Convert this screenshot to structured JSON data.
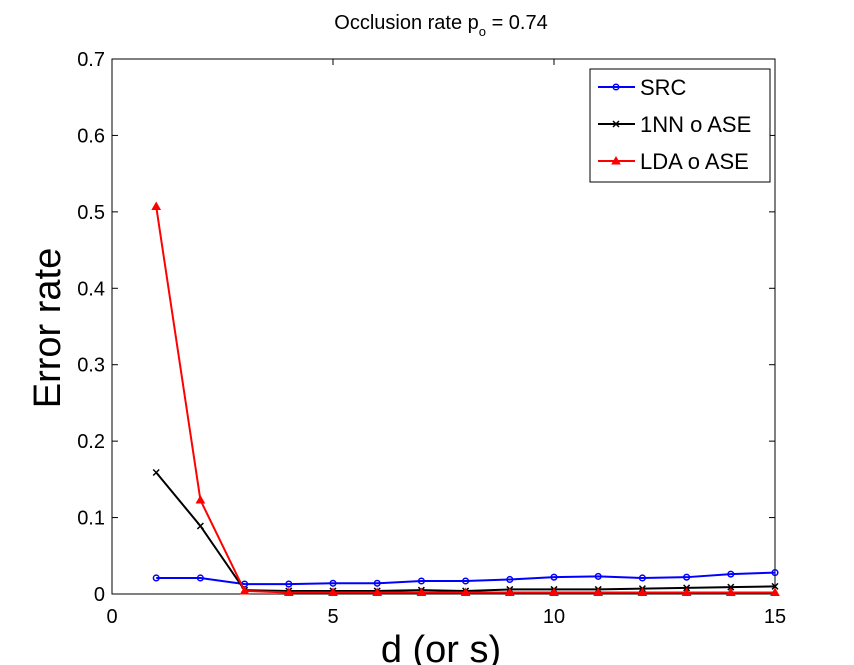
{
  "chart_data": {
    "type": "line",
    "title": "Occlusion rate p",
    "title_subscript": "o",
    "title_suffix": " = 0.74",
    "xlabel": "d (or s)",
    "ylabel": "Error rate",
    "xlim": [
      0,
      15
    ],
    "ylim": [
      0,
      0.7
    ],
    "xticks": [
      0,
      5,
      10,
      15
    ],
    "yticks": [
      0,
      0.1,
      0.2,
      0.3,
      0.4,
      0.5,
      0.6,
      0.7
    ],
    "xtick_labels": [
      "0",
      "5",
      "10",
      "15"
    ],
    "ytick_labels": [
      "0",
      "0.1",
      "0.2",
      "0.3",
      "0.4",
      "0.5",
      "0.6",
      "0.7"
    ],
    "grid": false,
    "legend_position": "top-right",
    "x": [
      1,
      2,
      3,
      4,
      5,
      6,
      7,
      8,
      9,
      10,
      11,
      12,
      13,
      14,
      15
    ],
    "series": [
      {
        "name": "SRC",
        "color": "#0000ff",
        "marker": "circle",
        "values": [
          0.021,
          0.021,
          0.013,
          0.013,
          0.014,
          0.014,
          0.017,
          0.017,
          0.019,
          0.022,
          0.023,
          0.021,
          0.022,
          0.026,
          0.028
        ]
      },
      {
        "name": "1NN o ASE",
        "color": "#000000",
        "marker": "x",
        "values": [
          0.159,
          0.089,
          0.005,
          0.004,
          0.004,
          0.004,
          0.005,
          0.004,
          0.006,
          0.006,
          0.006,
          0.007,
          0.008,
          0.009,
          0.01
        ]
      },
      {
        "name": "LDA o ASE",
        "color": "#ff0000",
        "marker": "triangle",
        "values": [
          0.507,
          0.123,
          0.004,
          0.002,
          0.002,
          0.002,
          0.002,
          0.002,
          0.002,
          0.002,
          0.002,
          0.002,
          0.002,
          0.002,
          0.002
        ]
      }
    ]
  }
}
